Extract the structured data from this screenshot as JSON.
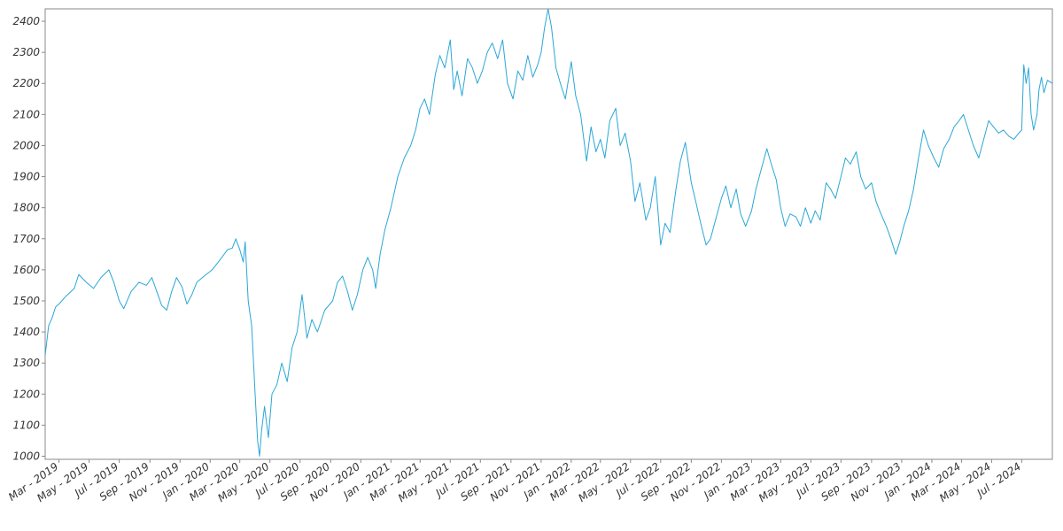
{
  "chart_data": {
    "type": "line",
    "title": "",
    "xlabel": "",
    "ylabel": "",
    "grid": false,
    "legend": "none",
    "xlim": [
      "2019-02-01",
      "2024-09-01"
    ],
    "ylim": [
      990,
      2440
    ],
    "y_ticks": [
      1000,
      1100,
      1200,
      1300,
      1400,
      1500,
      1600,
      1700,
      1800,
      1900,
      2000,
      2100,
      2200,
      2300,
      2400
    ],
    "x_ticks": [
      {
        "date": "2019-03-01",
        "label": "Mar - 2019"
      },
      {
        "date": "2019-05-01",
        "label": "May - 2019"
      },
      {
        "date": "2019-07-01",
        "label": "Jul - 2019"
      },
      {
        "date": "2019-09-01",
        "label": "Sep - 2019"
      },
      {
        "date": "2019-11-01",
        "label": "Nov - 2019"
      },
      {
        "date": "2020-01-01",
        "label": "Jan - 2020"
      },
      {
        "date": "2020-03-01",
        "label": "Mar - 2020"
      },
      {
        "date": "2020-05-01",
        "label": "May - 2020"
      },
      {
        "date": "2020-07-01",
        "label": "Jul - 2020"
      },
      {
        "date": "2020-09-01",
        "label": "Sep - 2020"
      },
      {
        "date": "2020-11-01",
        "label": "Nov - 2020"
      },
      {
        "date": "2021-01-01",
        "label": "Jan - 2021"
      },
      {
        "date": "2021-03-01",
        "label": "Mar - 2021"
      },
      {
        "date": "2021-05-01",
        "label": "May - 2021"
      },
      {
        "date": "2021-07-01",
        "label": "Jul - 2021"
      },
      {
        "date": "2021-09-01",
        "label": "Sep - 2021"
      },
      {
        "date": "2021-11-01",
        "label": "Nov - 2021"
      },
      {
        "date": "2022-01-01",
        "label": "Jan - 2022"
      },
      {
        "date": "2022-03-01",
        "label": "Mar - 2022"
      },
      {
        "date": "2022-05-01",
        "label": "May - 2022"
      },
      {
        "date": "2022-07-01",
        "label": "Jul - 2022"
      },
      {
        "date": "2022-09-01",
        "label": "Sep - 2022"
      },
      {
        "date": "2022-11-01",
        "label": "Nov - 2022"
      },
      {
        "date": "2023-01-01",
        "label": "Jan - 2023"
      },
      {
        "date": "2023-03-01",
        "label": "Mar - 2023"
      },
      {
        "date": "2023-05-01",
        "label": "May - 2023"
      },
      {
        "date": "2023-07-01",
        "label": "Jul - 2023"
      },
      {
        "date": "2023-09-01",
        "label": "Sep - 2023"
      },
      {
        "date": "2023-11-01",
        "label": "Nov - 2023"
      },
      {
        "date": "2024-01-01",
        "label": "Jan - 2024"
      },
      {
        "date": "2024-03-01",
        "label": "Mar - 2024"
      },
      {
        "date": "2024-05-01",
        "label": "May - 2024"
      },
      {
        "date": "2024-07-01",
        "label": "Jul - 2024"
      }
    ],
    "series": [
      {
        "color": "#2aa7d6",
        "points": [
          [
            "2019-02-01",
            1325
          ],
          [
            "2019-02-08",
            1420
          ],
          [
            "2019-02-15",
            1445
          ],
          [
            "2019-02-22",
            1480
          ],
          [
            "2019-03-01",
            1490
          ],
          [
            "2019-03-15",
            1515
          ],
          [
            "2019-04-01",
            1540
          ],
          [
            "2019-04-10",
            1585
          ],
          [
            "2019-04-25",
            1560
          ],
          [
            "2019-05-10",
            1540
          ],
          [
            "2019-05-25",
            1575
          ],
          [
            "2019-06-10",
            1600
          ],
          [
            "2019-06-20",
            1560
          ],
          [
            "2019-07-01",
            1500
          ],
          [
            "2019-07-10",
            1475
          ],
          [
            "2019-07-25",
            1530
          ],
          [
            "2019-08-10",
            1560
          ],
          [
            "2019-08-25",
            1550
          ],
          [
            "2019-09-05",
            1575
          ],
          [
            "2019-09-15",
            1530
          ],
          [
            "2019-09-25",
            1485
          ],
          [
            "2019-10-05",
            1470
          ],
          [
            "2019-10-15",
            1530
          ],
          [
            "2019-10-25",
            1575
          ],
          [
            "2019-11-05",
            1545
          ],
          [
            "2019-11-15",
            1490
          ],
          [
            "2019-11-25",
            1520
          ],
          [
            "2019-12-05",
            1560
          ],
          [
            "2019-12-20",
            1580
          ],
          [
            "2020-01-05",
            1600
          ],
          [
            "2020-01-20",
            1630
          ],
          [
            "2020-02-05",
            1665
          ],
          [
            "2020-02-15",
            1670
          ],
          [
            "2020-02-22",
            1700
          ],
          [
            "2020-03-01",
            1665
          ],
          [
            "2020-03-08",
            1625
          ],
          [
            "2020-03-12",
            1690
          ],
          [
            "2020-03-18",
            1500
          ],
          [
            "2020-03-25",
            1420
          ],
          [
            "2020-04-01",
            1200
          ],
          [
            "2020-04-06",
            1050
          ],
          [
            "2020-04-10",
            1000
          ],
          [
            "2020-04-14",
            1080
          ],
          [
            "2020-04-20",
            1160
          ],
          [
            "2020-04-28",
            1060
          ],
          [
            "2020-05-05",
            1200
          ],
          [
            "2020-05-15",
            1230
          ],
          [
            "2020-05-25",
            1300
          ],
          [
            "2020-06-05",
            1240
          ],
          [
            "2020-06-15",
            1350
          ],
          [
            "2020-06-25",
            1400
          ],
          [
            "2020-07-05",
            1520
          ],
          [
            "2020-07-15",
            1380
          ],
          [
            "2020-07-25",
            1440
          ],
          [
            "2020-08-05",
            1400
          ],
          [
            "2020-08-20",
            1470
          ],
          [
            "2020-09-05",
            1500
          ],
          [
            "2020-09-15",
            1560
          ],
          [
            "2020-09-25",
            1580
          ],
          [
            "2020-10-05",
            1530
          ],
          [
            "2020-10-15",
            1470
          ],
          [
            "2020-10-25",
            1520
          ],
          [
            "2020-11-05",
            1600
          ],
          [
            "2020-11-15",
            1640
          ],
          [
            "2020-11-25",
            1600
          ],
          [
            "2020-12-01",
            1540
          ],
          [
            "2020-12-10",
            1650
          ],
          [
            "2020-12-20",
            1730
          ],
          [
            "2021-01-01",
            1800
          ],
          [
            "2021-01-15",
            1900
          ],
          [
            "2021-01-28",
            1960
          ],
          [
            "2021-02-10",
            2000
          ],
          [
            "2021-02-20",
            2050
          ],
          [
            "2021-03-01",
            2120
          ],
          [
            "2021-03-10",
            2150
          ],
          [
            "2021-03-20",
            2100
          ],
          [
            "2021-04-01",
            2230
          ],
          [
            "2021-04-10",
            2290
          ],
          [
            "2021-04-20",
            2250
          ],
          [
            "2021-05-01",
            2340
          ],
          [
            "2021-05-08",
            2180
          ],
          [
            "2021-05-15",
            2240
          ],
          [
            "2021-05-25",
            2160
          ],
          [
            "2021-06-05",
            2280
          ],
          [
            "2021-06-15",
            2250
          ],
          [
            "2021-06-25",
            2200
          ],
          [
            "2021-07-05",
            2240
          ],
          [
            "2021-07-15",
            2300
          ],
          [
            "2021-07-25",
            2330
          ],
          [
            "2021-08-05",
            2280
          ],
          [
            "2021-08-15",
            2340
          ],
          [
            "2021-08-25",
            2200
          ],
          [
            "2021-09-05",
            2150
          ],
          [
            "2021-09-15",
            2240
          ],
          [
            "2021-09-25",
            2210
          ],
          [
            "2021-10-05",
            2290
          ],
          [
            "2021-10-15",
            2220
          ],
          [
            "2021-10-25",
            2260
          ],
          [
            "2021-11-01",
            2300
          ],
          [
            "2021-11-08",
            2380
          ],
          [
            "2021-11-15",
            2440
          ],
          [
            "2021-11-22",
            2380
          ],
          [
            "2021-12-01",
            2250
          ],
          [
            "2021-12-10",
            2200
          ],
          [
            "2021-12-20",
            2150
          ],
          [
            "2022-01-01",
            2270
          ],
          [
            "2022-01-10",
            2160
          ],
          [
            "2022-01-20",
            2100
          ],
          [
            "2022-02-01",
            1950
          ],
          [
            "2022-02-10",
            2060
          ],
          [
            "2022-02-20",
            1980
          ],
          [
            "2022-03-01",
            2020
          ],
          [
            "2022-03-10",
            1960
          ],
          [
            "2022-03-20",
            2080
          ],
          [
            "2022-04-01",
            2120
          ],
          [
            "2022-04-10",
            2000
          ],
          [
            "2022-04-20",
            2040
          ],
          [
            "2022-05-01",
            1950
          ],
          [
            "2022-05-10",
            1820
          ],
          [
            "2022-05-20",
            1880
          ],
          [
            "2022-06-01",
            1760
          ],
          [
            "2022-06-10",
            1800
          ],
          [
            "2022-06-20",
            1900
          ],
          [
            "2022-07-01",
            1680
          ],
          [
            "2022-07-10",
            1750
          ],
          [
            "2022-07-20",
            1720
          ],
          [
            "2022-08-01",
            1860
          ],
          [
            "2022-08-10",
            1950
          ],
          [
            "2022-08-20",
            2010
          ],
          [
            "2022-09-01",
            1880
          ],
          [
            "2022-09-10",
            1820
          ],
          [
            "2022-09-20",
            1750
          ],
          [
            "2022-10-01",
            1680
          ],
          [
            "2022-10-10",
            1700
          ],
          [
            "2022-10-20",
            1760
          ],
          [
            "2022-11-01",
            1830
          ],
          [
            "2022-11-10",
            1870
          ],
          [
            "2022-11-20",
            1800
          ],
          [
            "2022-12-01",
            1860
          ],
          [
            "2022-12-10",
            1780
          ],
          [
            "2022-12-20",
            1740
          ],
          [
            "2023-01-01",
            1790
          ],
          [
            "2023-01-10",
            1860
          ],
          [
            "2023-01-20",
            1920
          ],
          [
            "2023-02-01",
            1990
          ],
          [
            "2023-02-10",
            1940
          ],
          [
            "2023-02-20",
            1890
          ],
          [
            "2023-03-01",
            1800
          ],
          [
            "2023-03-10",
            1740
          ],
          [
            "2023-03-20",
            1780
          ],
          [
            "2023-04-01",
            1770
          ],
          [
            "2023-04-10",
            1740
          ],
          [
            "2023-04-20",
            1800
          ],
          [
            "2023-05-01",
            1750
          ],
          [
            "2023-05-10",
            1790
          ],
          [
            "2023-05-20",
            1760
          ],
          [
            "2023-06-01",
            1880
          ],
          [
            "2023-06-10",
            1860
          ],
          [
            "2023-06-20",
            1830
          ],
          [
            "2023-07-01",
            1900
          ],
          [
            "2023-07-10",
            1960
          ],
          [
            "2023-07-20",
            1940
          ],
          [
            "2023-08-01",
            1980
          ],
          [
            "2023-08-10",
            1900
          ],
          [
            "2023-08-20",
            1860
          ],
          [
            "2023-09-01",
            1880
          ],
          [
            "2023-09-10",
            1820
          ],
          [
            "2023-09-20",
            1780
          ],
          [
            "2023-10-01",
            1740
          ],
          [
            "2023-10-10",
            1700
          ],
          [
            "2023-10-20",
            1650
          ],
          [
            "2023-10-28",
            1690
          ],
          [
            "2023-11-05",
            1740
          ],
          [
            "2023-11-15",
            1790
          ],
          [
            "2023-11-25",
            1860
          ],
          [
            "2023-12-05",
            1960
          ],
          [
            "2023-12-15",
            2050
          ],
          [
            "2023-12-25",
            2000
          ],
          [
            "2024-01-05",
            1960
          ],
          [
            "2024-01-15",
            1930
          ],
          [
            "2024-01-25",
            1990
          ],
          [
            "2024-02-05",
            2020
          ],
          [
            "2024-02-15",
            2060
          ],
          [
            "2024-02-25",
            2080
          ],
          [
            "2024-03-05",
            2100
          ],
          [
            "2024-03-15",
            2050
          ],
          [
            "2024-03-25",
            2000
          ],
          [
            "2024-04-05",
            1960
          ],
          [
            "2024-04-15",
            2020
          ],
          [
            "2024-04-25",
            2080
          ],
          [
            "2024-05-05",
            2060
          ],
          [
            "2024-05-15",
            2040
          ],
          [
            "2024-05-25",
            2050
          ],
          [
            "2024-06-05",
            2030
          ],
          [
            "2024-06-15",
            2020
          ],
          [
            "2024-06-25",
            2040
          ],
          [
            "2024-07-01",
            2050
          ],
          [
            "2024-07-05",
            2260
          ],
          [
            "2024-07-10",
            2200
          ],
          [
            "2024-07-15",
            2250
          ],
          [
            "2024-07-20",
            2100
          ],
          [
            "2024-07-25",
            2050
          ],
          [
            "2024-08-01",
            2100
          ],
          [
            "2024-08-05",
            2180
          ],
          [
            "2024-08-10",
            2220
          ],
          [
            "2024-08-15",
            2170
          ],
          [
            "2024-08-22",
            2210
          ],
          [
            "2024-09-01",
            2200
          ]
        ]
      }
    ]
  }
}
